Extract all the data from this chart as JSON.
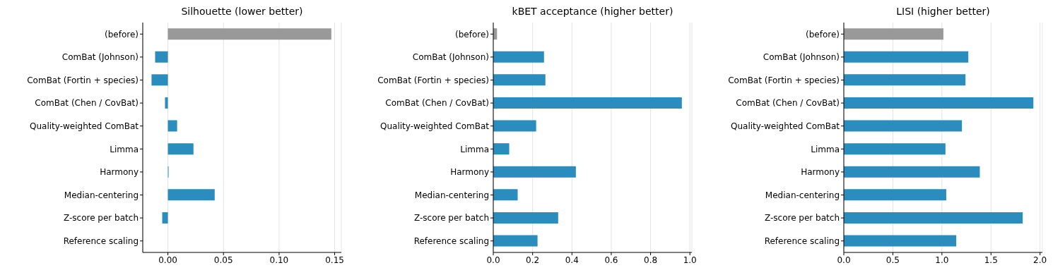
{
  "chart_data": [
    {
      "type": "bar",
      "orientation": "horizontal",
      "title": "Silhouette (lower better)",
      "categories": [
        "(before)",
        "ComBat (Johnson)",
        "ComBat (Fortin + species)",
        "ComBat (Chen / CovBat)",
        "Quality-weighted ComBat",
        "Limma",
        "Harmony",
        "Median-centering",
        "Z-score per batch",
        "Reference scaling"
      ],
      "values": [
        0.147,
        -0.0115,
        -0.0147,
        -0.0026,
        0.0083,
        0.023,
        0.0006,
        0.0421,
        -0.0051,
        0
      ],
      "colors": [
        "#999999",
        "#2b8cbe",
        "#2b8cbe",
        "#2b8cbe",
        "#2b8cbe",
        "#2b8cbe",
        "#2b8cbe",
        "#2b8cbe",
        "#2b8cbe",
        "#2b8cbe"
      ],
      "xlim": [
        -0.0226,
        0.156
      ],
      "xticks": [
        {
          "value": 0,
          "label": "0.00"
        },
        {
          "value": 0.05,
          "label": "0.05"
        },
        {
          "value": 0.1,
          "label": "0.10"
        },
        {
          "value": 0.15,
          "label": "0.15"
        }
      ],
      "grid": "x"
    },
    {
      "type": "bar",
      "orientation": "horizontal",
      "title": "kBET acceptance (higher better)",
      "categories": [
        "(before)",
        "ComBat (Johnson)",
        "ComBat (Fortin + species)",
        "ComBat (Chen / CovBat)",
        "Quality-weighted ComBat",
        "Limma",
        "Harmony",
        "Median-centering",
        "Z-score per batch",
        "Reference scaling"
      ],
      "values": [
        0.019,
        0.258,
        0.265,
        0.959,
        0.218,
        0.081,
        0.42,
        0.124,
        0.33,
        0.225
      ],
      "colors": [
        "#999999",
        "#2b8cbe",
        "#2b8cbe",
        "#2b8cbe",
        "#2b8cbe",
        "#2b8cbe",
        "#2b8cbe",
        "#2b8cbe",
        "#2b8cbe",
        "#2b8cbe"
      ],
      "xlim": [
        0,
        1.01
      ],
      "xticks": [
        {
          "value": 0,
          "label": "0.0"
        },
        {
          "value": 0.2,
          "label": "0.2"
        },
        {
          "value": 0.4,
          "label": "0.4"
        },
        {
          "value": 0.6,
          "label": "0.6"
        },
        {
          "value": 0.8,
          "label": "0.8"
        },
        {
          "value": 1,
          "label": "1.0"
        }
      ],
      "grid": "x"
    },
    {
      "type": "bar",
      "orientation": "horizontal",
      "title": "LISI (higher better)",
      "categories": [
        "(before)",
        "ComBat (Johnson)",
        "ComBat (Fortin + species)",
        "ComBat (Chen / CovBat)",
        "Quality-weighted ComBat",
        "Limma",
        "Harmony",
        "Median-centering",
        "Z-score per batch",
        "Reference scaling"
      ],
      "values": [
        1.015,
        1.269,
        1.24,
        1.932,
        1.204,
        1.036,
        1.386,
        1.044,
        1.823,
        1.146
      ],
      "colors": [
        "#999999",
        "#2b8cbe",
        "#2b8cbe",
        "#2b8cbe",
        "#2b8cbe",
        "#2b8cbe",
        "#2b8cbe",
        "#2b8cbe",
        "#2b8cbe",
        "#2b8cbe"
      ],
      "xlim": [
        0,
        2.024
      ],
      "xticks": [
        {
          "value": 0,
          "label": "0.0"
        },
        {
          "value": 0.5,
          "label": "0.5"
        },
        {
          "value": 1,
          "label": "1.0"
        },
        {
          "value": 1.5,
          "label": "1.5"
        },
        {
          "value": 2,
          "label": "2.0"
        }
      ],
      "grid": "x"
    }
  ]
}
